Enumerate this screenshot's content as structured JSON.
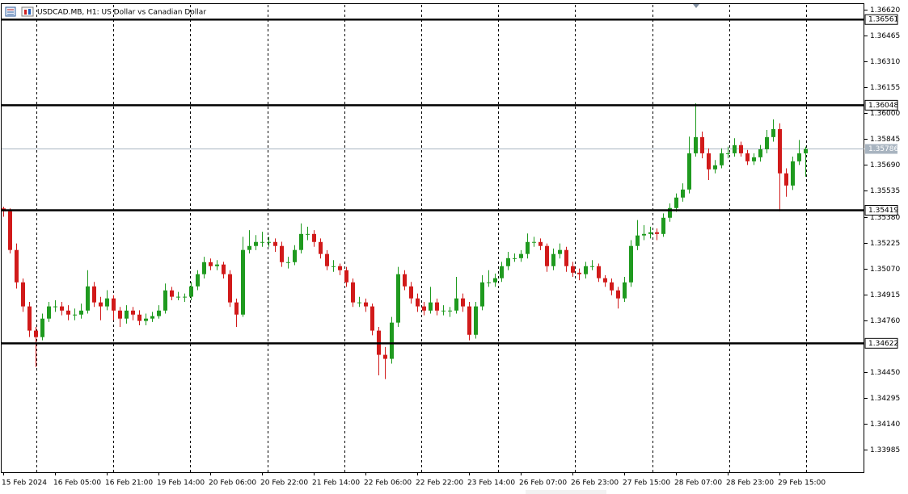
{
  "chart_data": {
    "type": "candlestick",
    "title": "USDCAD.MB, H1:  US Dollar vs Canadian Dollar",
    "categories": [
      "15 Feb 2024",
      null,
      null,
      null,
      null,
      null,
      null,
      null,
      "16 Feb 05:00",
      null,
      null,
      null,
      null,
      null,
      null,
      null,
      "16 Feb 21:00",
      null,
      null,
      null,
      null,
      null,
      null,
      null,
      "19 Feb 14:00",
      null,
      null,
      null,
      null,
      null,
      null,
      null,
      "20 Feb 06:00",
      null,
      null,
      null,
      null,
      null,
      null,
      null,
      "20 Feb 22:00",
      null,
      null,
      null,
      null,
      null,
      null,
      null,
      "21 Feb 14:00",
      null,
      null,
      null,
      null,
      null,
      null,
      null,
      "22 Feb 06:00",
      null,
      null,
      null,
      null,
      null,
      null,
      null,
      "22 Feb 22:00",
      null,
      null,
      null,
      null,
      null,
      null,
      null,
      "23 Feb 14:00",
      null,
      null,
      null,
      null,
      null,
      null,
      null,
      "26 Feb 07:00",
      null,
      null,
      null,
      null,
      null,
      null,
      null,
      "26 Feb 23:00",
      null,
      null,
      null,
      null,
      null,
      null,
      null,
      "27 Feb 15:00",
      null,
      null,
      null,
      null,
      null,
      null,
      null,
      "28 Feb 07:00",
      null,
      null,
      null,
      null,
      null,
      null,
      null,
      "28 Feb 23:00",
      null,
      null,
      null,
      null,
      null,
      null,
      null,
      "29 Feb 15:00",
      null,
      null,
      null,
      null
    ],
    "ohlc": [
      [
        1.3543,
        1.3544,
        1.3538,
        1.35413
      ],
      [
        1.35413,
        1.3543,
        1.3516,
        1.35181
      ],
      [
        1.35181,
        1.3522,
        1.3495,
        1.34987
      ],
      [
        1.34987,
        1.3501,
        1.3481,
        1.34843
      ],
      [
        1.34843,
        1.3487,
        1.3466,
        1.34698
      ],
      [
        1.34698,
        1.3472,
        1.3448,
        1.34659
      ],
      [
        1.34659,
        1.348,
        1.3464,
        1.3477
      ],
      [
        1.3477,
        1.3487,
        1.3475,
        1.34843
      ],
      [
        1.34843,
        1.3488,
        1.3481,
        1.34843
      ],
      [
        1.34843,
        1.3487,
        1.3479,
        1.34818
      ],
      [
        1.34818,
        1.3485,
        1.3476,
        1.34794
      ],
      [
        1.34794,
        1.3483,
        1.3476,
        1.34794
      ],
      [
        1.34794,
        1.3486,
        1.3477,
        1.34818
      ],
      [
        1.34818,
        1.3506,
        1.348,
        1.34963
      ],
      [
        1.34963,
        1.3499,
        1.3484,
        1.34867
      ],
      [
        1.34867,
        1.349,
        1.3476,
        1.34843
      ],
      [
        1.34843,
        1.3494,
        1.3482,
        1.34891
      ],
      [
        1.34891,
        1.3491,
        1.3476,
        1.34818
      ],
      [
        1.34818,
        1.3484,
        1.3472,
        1.3477
      ],
      [
        1.3477,
        1.3485,
        1.3474,
        1.34818
      ],
      [
        1.34818,
        1.3484,
        1.3476,
        1.34794
      ],
      [
        1.34794,
        1.3482,
        1.3473,
        1.34756
      ],
      [
        1.34756,
        1.348,
        1.3473,
        1.3477
      ],
      [
        1.3477,
        1.3481,
        1.3475,
        1.34785
      ],
      [
        1.34785,
        1.3485,
        1.3477,
        1.34818
      ],
      [
        1.34818,
        1.3498,
        1.348,
        1.34939
      ],
      [
        1.34939,
        1.3496,
        1.3488,
        1.34901
      ],
      [
        1.34901,
        1.3493,
        1.3488,
        1.34901
      ],
      [
        1.34901,
        1.3492,
        1.3487,
        1.34901
      ],
      [
        1.34901,
        1.3499,
        1.3488,
        1.34963
      ],
      [
        1.34963,
        1.3506,
        1.3494,
        1.35036
      ],
      [
        1.35036,
        1.3514,
        1.3501,
        1.35108
      ],
      [
        1.35108,
        1.3513,
        1.3506,
        1.35084
      ],
      [
        1.35084,
        1.3512,
        1.3506,
        1.35094
      ],
      [
        1.35094,
        1.3511,
        1.3501,
        1.35036
      ],
      [
        1.35036,
        1.3506,
        1.3484,
        1.34867
      ],
      [
        1.34867,
        1.3489,
        1.3472,
        1.34794
      ],
      [
        1.34794,
        1.3526,
        1.3478,
        1.35181
      ],
      [
        1.35181,
        1.353,
        1.3516,
        1.35205
      ],
      [
        1.35205,
        1.3527,
        1.3518,
        1.35229
      ],
      [
        1.35229,
        1.3529,
        1.352,
        1.35229
      ],
      [
        1.35229,
        1.3526,
        1.352,
        1.35229
      ],
      [
        1.35229,
        1.3525,
        1.3517,
        1.35205
      ],
      [
        1.35205,
        1.3523,
        1.3508,
        1.35108
      ],
      [
        1.35108,
        1.3514,
        1.3507,
        1.35108
      ],
      [
        1.35108,
        1.3521,
        1.3509,
        1.35181
      ],
      [
        1.35181,
        1.3534,
        1.3516,
        1.35277
      ],
      [
        1.35277,
        1.3532,
        1.3524,
        1.35277
      ],
      [
        1.35277,
        1.353,
        1.352,
        1.35229
      ],
      [
        1.35229,
        1.3525,
        1.3513,
        1.35157
      ],
      [
        1.35157,
        1.3518,
        1.3506,
        1.35084
      ],
      [
        1.35084,
        1.3512,
        1.3505,
        1.35084
      ],
      [
        1.35084,
        1.351,
        1.3503,
        1.3506
      ],
      [
        1.3506,
        1.3508,
        1.3496,
        1.34987
      ],
      [
        1.34987,
        1.3501,
        1.3484,
        1.34867
      ],
      [
        1.34867,
        1.349,
        1.3484,
        1.34867
      ],
      [
        1.34867,
        1.3489,
        1.3481,
        1.34843
      ],
      [
        1.34843,
        1.3486,
        1.3467,
        1.34698
      ],
      [
        1.34698,
        1.3472,
        1.3443,
        1.34553
      ],
      [
        1.34553,
        1.346,
        1.34408,
        1.34529
      ],
      [
        1.34529,
        1.3478,
        1.345,
        1.34746
      ],
      [
        1.34746,
        1.3508,
        1.3472,
        1.35036
      ],
      [
        1.35036,
        1.3506,
        1.3494,
        1.34963
      ],
      [
        1.34963,
        1.3499,
        1.3486,
        1.34891
      ],
      [
        1.34891,
        1.3492,
        1.3481,
        1.34843
      ],
      [
        1.34843,
        1.3487,
        1.3479,
        1.34818
      ],
      [
        1.34818,
        1.3496,
        1.348,
        1.34867
      ],
      [
        1.34867,
        1.3489,
        1.3479,
        1.34818
      ],
      [
        1.34818,
        1.3485,
        1.3479,
        1.34818
      ],
      [
        1.34818,
        1.3484,
        1.3478,
        1.34818
      ],
      [
        1.34818,
        1.3502,
        1.348,
        1.34891
      ],
      [
        1.34891,
        1.3492,
        1.3481,
        1.34843
      ],
      [
        1.34843,
        1.3487,
        1.3464,
        1.34673
      ],
      [
        1.34673,
        1.3487,
        1.3465,
        1.34843
      ],
      [
        1.34843,
        1.3503,
        1.3482,
        1.34987
      ],
      [
        1.34987,
        1.3506,
        1.3496,
        1.34987
      ],
      [
        1.34987,
        1.3504,
        1.3496,
        1.35012
      ],
      [
        1.35012,
        1.3511,
        1.3499,
        1.35084
      ],
      [
        1.35084,
        1.3517,
        1.3506,
        1.35132
      ],
      [
        1.35132,
        1.3516,
        1.3511,
        1.35132
      ],
      [
        1.35132,
        1.3518,
        1.3511,
        1.35157
      ],
      [
        1.35157,
        1.3528,
        1.3513,
        1.35229
      ],
      [
        1.35229,
        1.3526,
        1.352,
        1.35229
      ],
      [
        1.35229,
        1.3525,
        1.3518,
        1.35205
      ],
      [
        1.35205,
        1.3522,
        1.3505,
        1.35084
      ],
      [
        1.35084,
        1.3519,
        1.3506,
        1.35157
      ],
      [
        1.35157,
        1.3522,
        1.3513,
        1.35181
      ],
      [
        1.35181,
        1.352,
        1.3505,
        1.35084
      ],
      [
        1.35084,
        1.3511,
        1.3502,
        1.35045
      ],
      [
        1.35045,
        1.3507,
        1.35,
        1.35036
      ],
      [
        1.35036,
        1.3511,
        1.3501,
        1.35084
      ],
      [
        1.35084,
        1.3512,
        1.3506,
        1.35084
      ],
      [
        1.35084,
        1.351,
        1.3499,
        1.35012
      ],
      [
        1.35012,
        1.3503,
        1.3496,
        1.34987
      ],
      [
        1.34987,
        1.3501,
        1.3491,
        1.34939
      ],
      [
        1.34939,
        1.3496,
        1.3483,
        1.34891
      ],
      [
        1.34891,
        1.3502,
        1.3487,
        1.34987
      ],
      [
        1.34987,
        1.3524,
        1.3496,
        1.35205
      ],
      [
        1.35205,
        1.3536,
        1.3518,
        1.35268
      ],
      [
        1.35268,
        1.3533,
        1.3524,
        1.35277
      ],
      [
        1.35277,
        1.3532,
        1.3525,
        1.35287
      ],
      [
        1.35287,
        1.3531,
        1.3524,
        1.35277
      ],
      [
        1.35277,
        1.354,
        1.3526,
        1.35374
      ],
      [
        1.35374,
        1.3546,
        1.3535,
        1.35432
      ],
      [
        1.35432,
        1.3552,
        1.3541,
        1.35495
      ],
      [
        1.35495,
        1.3558,
        1.3547,
        1.35543
      ],
      [
        1.35543,
        1.3586,
        1.3552,
        1.3576
      ],
      [
        1.3576,
        1.3606,
        1.3574,
        1.35857
      ],
      [
        1.35857,
        1.3589,
        1.3573,
        1.3576
      ],
      [
        1.3576,
        1.3579,
        1.356,
        1.35664
      ],
      [
        1.35664,
        1.3572,
        1.3564,
        1.35688
      ],
      [
        1.35688,
        1.3579,
        1.3567,
        1.3576
      ],
      [
        1.3576,
        1.358,
        1.3573,
        1.3576
      ],
      [
        1.3576,
        1.3585,
        1.3574,
        1.35809
      ],
      [
        1.35809,
        1.3583,
        1.3574,
        1.3576
      ],
      [
        1.3576,
        1.3578,
        1.3569,
        1.35712
      ],
      [
        1.35712,
        1.3576,
        1.3569,
        1.35736
      ],
      [
        1.35736,
        1.3581,
        1.3571,
        1.35784
      ],
      [
        1.35784,
        1.359,
        1.3576,
        1.35857
      ],
      [
        1.35857,
        1.35963,
        1.3583,
        1.35905
      ],
      [
        1.35905,
        1.3594,
        1.35413,
        1.3564
      ],
      [
        1.3564,
        1.3567,
        1.355,
        1.35567
      ],
      [
        1.35567,
        1.3574,
        1.3554,
        1.35712
      ],
      [
        1.35712,
        1.3584,
        1.3569,
        1.3576
      ],
      [
        1.3576,
        1.358,
        1.3562,
        1.35786
      ]
    ],
    "up_color": "#1f9a1f",
    "down_color": "#d11a1a",
    "ylim": [
      1.3385,
      1.36654
    ],
    "yticks": [
      {
        "value": 1.3662,
        "label": "1.36620"
      },
      1.36465,
      {
        "value": 1.3631,
        "label": "1.36310"
      },
      1.36155,
      {
        "value": 1.36,
        "label": "1.36000"
      },
      1.35845,
      {
        "value": 1.3569,
        "label": "1.35690"
      },
      1.35535,
      {
        "value": 1.3538,
        "label": "1.35380"
      },
      1.35225,
      {
        "value": 1.3507,
        "label": "1.35070"
      },
      1.34915,
      {
        "value": 1.3476,
        "label": "1.34760"
      },
      {
        "value": 1.3445,
        "label": "1.34450"
      },
      1.34295,
      {
        "value": 1.3414,
        "label": "1.34140"
      },
      1.33985
    ],
    "levels": [
      1.36561,
      1.36048,
      1.35419,
      1.34622
    ],
    "current_price": 1.35786,
    "grid": true
  }
}
